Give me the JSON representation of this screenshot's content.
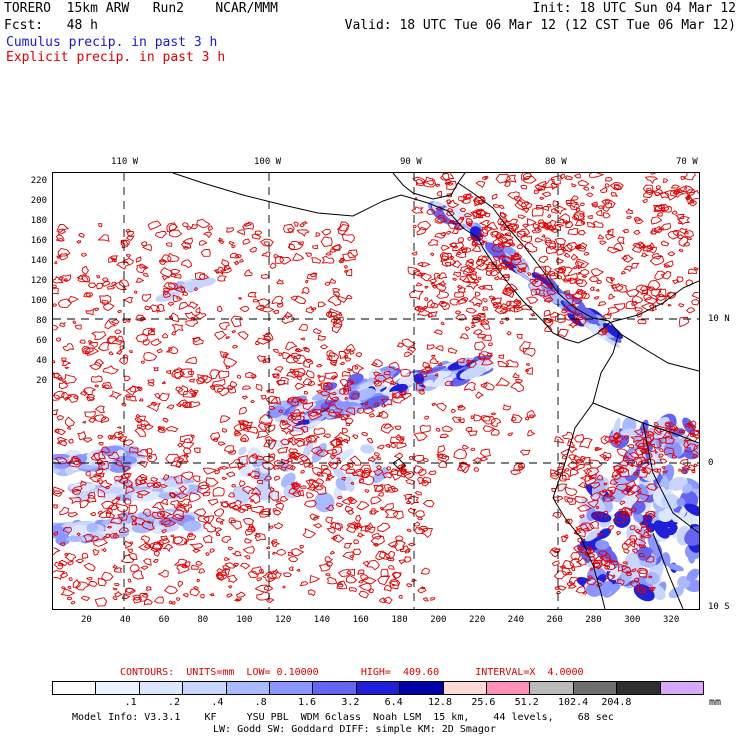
{
  "header": {
    "line1_left": "TORERO  15km ARW   Run2    NCAR/MMM",
    "line1_right": "Init: 18 UTC Sun 04 Mar 12",
    "line2_left": "Fcst:   48 h",
    "line2_right": "Valid: 18 UTC Tue 06 Mar 12 (12 CST Tue 06 Mar 12)",
    "field1": "Cumulus precip. in past 3 h",
    "field2": "Explicit precip. in past 3 h"
  },
  "map": {
    "top_lon_labels": [
      "110 W",
      "100 W",
      "90 W",
      "80 W",
      "70 W"
    ],
    "right_lat_labels": [
      "10 N",
      "0",
      "10 S"
    ],
    "y_ticks": [
      "220",
      "200",
      "180",
      "160",
      "140",
      "120",
      "100",
      "80",
      "60",
      "40",
      "20"
    ],
    "x_ticks": [
      "20",
      "40",
      "60",
      "80",
      "100",
      "120",
      "140",
      "160",
      "180",
      "200",
      "220",
      "240",
      "260",
      "280",
      "300",
      "320"
    ],
    "colors": {
      "contour": "#e00000",
      "land": "#000000",
      "grid": "#000000"
    }
  },
  "contours_label": "CONTOURS:  UNITS=mm  LOW= 0.10000       HIGH=  409.60      INTERVAL=X  4.0000",
  "colorbar": {
    "colors": [
      "#ffffff",
      "#eef4ff",
      "#dde8ff",
      "#c8d6ff",
      "#aabaff",
      "#8c96ff",
      "#6464f0",
      "#2020d8",
      "#0000a8",
      "#ffd8d8",
      "#ff90b8",
      "#bababa",
      "#6e6e6e",
      "#2e2e2e",
      "#d8a8ff"
    ],
    "labels": [
      ".1",
      ".2",
      ".4",
      ".8",
      "1.6",
      "3.2",
      "6.4",
      "12.8",
      "25.6",
      "51.2",
      "102.4",
      "204.8"
    ],
    "unit": "mm"
  },
  "model_info_line1": "Model Info: V3.3.1    KF     YSU PBL  WDM 6class  Noah LSM  15 km,    44 levels,    68 sec",
  "model_info_line2": "LW: Godd SW: Goddard DIFF: simple KM: 2D Smagor"
}
